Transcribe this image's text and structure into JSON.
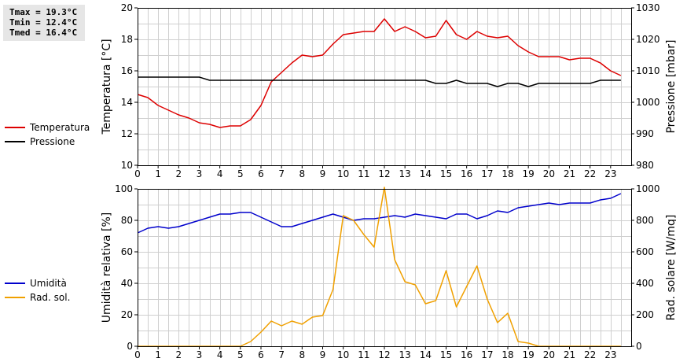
{
  "stats": {
    "tmax": "Tmax = 19.3°C",
    "tmin": "Tmin = 12.4°C",
    "tmed": "Tmed = 16.4°C"
  },
  "legend_top": [
    {
      "label": "Temperatura",
      "color": "#dd0000"
    },
    {
      "label": "Pressione",
      "color": "#000000"
    }
  ],
  "legend_bottom": [
    {
      "label": "Umidità",
      "color": "#0000cc"
    },
    {
      "label": "Rad. sol.",
      "color": "#f0a000"
    }
  ],
  "chart_data": [
    {
      "type": "line",
      "xlabel": "",
      "xlim": [
        0,
        24
      ],
      "xticks": [
        0,
        1,
        2,
        3,
        4,
        5,
        6,
        7,
        8,
        9,
        10,
        11,
        12,
        13,
        14,
        15,
        16,
        17,
        18,
        19,
        20,
        21,
        22,
        23
      ],
      "ylabel": "Temperatura [°C]",
      "ylim": [
        10,
        20
      ],
      "yticks": [
        10,
        12,
        14,
        16,
        18,
        20
      ],
      "y2label": "Pressione [mbar]",
      "y2lim": [
        980,
        1030
      ],
      "y2ticks": [
        980,
        990,
        1000,
        1010,
        1020,
        1030
      ],
      "grid": true,
      "series": [
        {
          "name": "Temperatura",
          "axis": "left",
          "color": "#dd0000",
          "x": [
            0,
            0.5,
            1,
            1.5,
            2,
            2.5,
            3,
            3.5,
            4,
            4.5,
            5,
            5.5,
            6,
            6.5,
            7,
            7.5,
            8,
            8.5,
            9,
            9.5,
            10,
            10.5,
            11,
            11.5,
            12,
            12.5,
            13,
            13.5,
            14,
            14.5,
            15,
            15.5,
            16,
            16.5,
            17,
            17.5,
            18,
            18.5,
            19,
            19.5,
            20,
            20.5,
            21,
            21.5,
            22,
            22.5,
            23,
            23.5
          ],
          "y": [
            14.5,
            14.3,
            13.8,
            13.5,
            13.2,
            13.0,
            12.7,
            12.6,
            12.4,
            12.5,
            12.5,
            12.9,
            13.8,
            15.3,
            15.9,
            16.5,
            17.0,
            16.9,
            17.0,
            17.7,
            18.3,
            18.4,
            18.5,
            18.5,
            19.3,
            18.5,
            18.8,
            18.5,
            18.1,
            18.2,
            19.2,
            18.3,
            18.0,
            18.5,
            18.2,
            18.1,
            18.2,
            17.6,
            17.2,
            16.9,
            16.9,
            16.9,
            16.7,
            16.8,
            16.8,
            16.5,
            16.0,
            15.7
          ]
        },
        {
          "name": "Pressione",
          "axis": "right",
          "color": "#000000",
          "x": [
            0,
            0.5,
            1,
            1.5,
            2,
            2.5,
            3,
            3.5,
            4,
            4.5,
            5,
            5.5,
            6,
            6.5,
            7,
            7.5,
            8,
            8.5,
            9,
            9.5,
            10,
            10.5,
            11,
            11.5,
            12,
            12.5,
            13,
            13.5,
            14,
            14.5,
            15,
            15.5,
            16,
            16.5,
            17,
            17.5,
            18,
            18.5,
            19,
            19.5,
            20,
            20.5,
            21,
            21.5,
            22,
            22.5,
            23,
            23.5
          ],
          "y": [
            1008,
            1008,
            1008,
            1008,
            1008,
            1008,
            1008,
            1007,
            1007,
            1007,
            1007,
            1007,
            1007,
            1007,
            1007,
            1007,
            1007,
            1007,
            1007,
            1007,
            1007,
            1007,
            1007,
            1007,
            1007,
            1007,
            1007,
            1007,
            1007,
            1006,
            1006,
            1007,
            1006,
            1006,
            1006,
            1005,
            1006,
            1006,
            1005,
            1006,
            1006,
            1006,
            1006,
            1006,
            1006,
            1007,
            1007,
            1007
          ]
        }
      ]
    },
    {
      "type": "line",
      "xlabel": "",
      "xlim": [
        0,
        24
      ],
      "xticks": [
        0,
        1,
        2,
        3,
        4,
        5,
        6,
        7,
        8,
        9,
        10,
        11,
        12,
        13,
        14,
        15,
        16,
        17,
        18,
        19,
        20,
        21,
        22,
        23
      ],
      "ylabel": "Umidità relativa [%]",
      "ylim": [
        0,
        100
      ],
      "yticks": [
        0,
        20,
        40,
        60,
        80,
        100
      ],
      "y2label": "Rad. solare [W/mq]",
      "y2lim": [
        0,
        1000
      ],
      "y2ticks": [
        0,
        200,
        400,
        600,
        800,
        1000
      ],
      "grid": true,
      "series": [
        {
          "name": "Umidità",
          "axis": "left",
          "color": "#0000cc",
          "x": [
            0,
            0.5,
            1,
            1.5,
            2,
            2.5,
            3,
            3.5,
            4,
            4.5,
            5,
            5.5,
            6,
            6.5,
            7,
            7.5,
            8,
            8.5,
            9,
            9.5,
            10,
            10.5,
            11,
            11.5,
            12,
            12.5,
            13,
            13.5,
            14,
            14.5,
            15,
            15.5,
            16,
            16.5,
            17,
            17.5,
            18,
            18.5,
            19,
            19.5,
            20,
            20.5,
            21,
            21.5,
            22,
            22.5,
            23,
            23.5
          ],
          "y": [
            72,
            75,
            76,
            75,
            76,
            78,
            80,
            82,
            84,
            84,
            85,
            85,
            82,
            79,
            76,
            76,
            78,
            80,
            82,
            84,
            82,
            80,
            81,
            81,
            82,
            83,
            82,
            84,
            83,
            82,
            81,
            84,
            84,
            81,
            83,
            86,
            85,
            88,
            89,
            90,
            91,
            90,
            91,
            91,
            91,
            93,
            94,
            97
          ]
        },
        {
          "name": "Rad. sol.",
          "axis": "right",
          "color": "#f0a000",
          "x": [
            0,
            0.5,
            1,
            1.5,
            2,
            2.5,
            3,
            3.5,
            4,
            4.5,
            5,
            5.5,
            6,
            6.5,
            7,
            7.5,
            8,
            8.5,
            9,
            9.5,
            10,
            10.5,
            11,
            11.5,
            12,
            12.5,
            13,
            13.5,
            14,
            14.5,
            15,
            15.5,
            16,
            16.5,
            17,
            17.5,
            18,
            18.5,
            19,
            19.5,
            20,
            20.5,
            21,
            21.5,
            22,
            22.5,
            23,
            23.5
          ],
          "y": [
            0,
            0,
            0,
            0,
            0,
            0,
            0,
            0,
            0,
            0,
            0,
            30,
            90,
            160,
            130,
            160,
            140,
            185,
            195,
            360,
            830,
            800,
            710,
            630,
            1010,
            550,
            410,
            390,
            270,
            290,
            480,
            250,
            380,
            510,
            300,
            150,
            210,
            30,
            20,
            0,
            0,
            0,
            0,
            0,
            0,
            0,
            0,
            0
          ]
        }
      ]
    }
  ]
}
